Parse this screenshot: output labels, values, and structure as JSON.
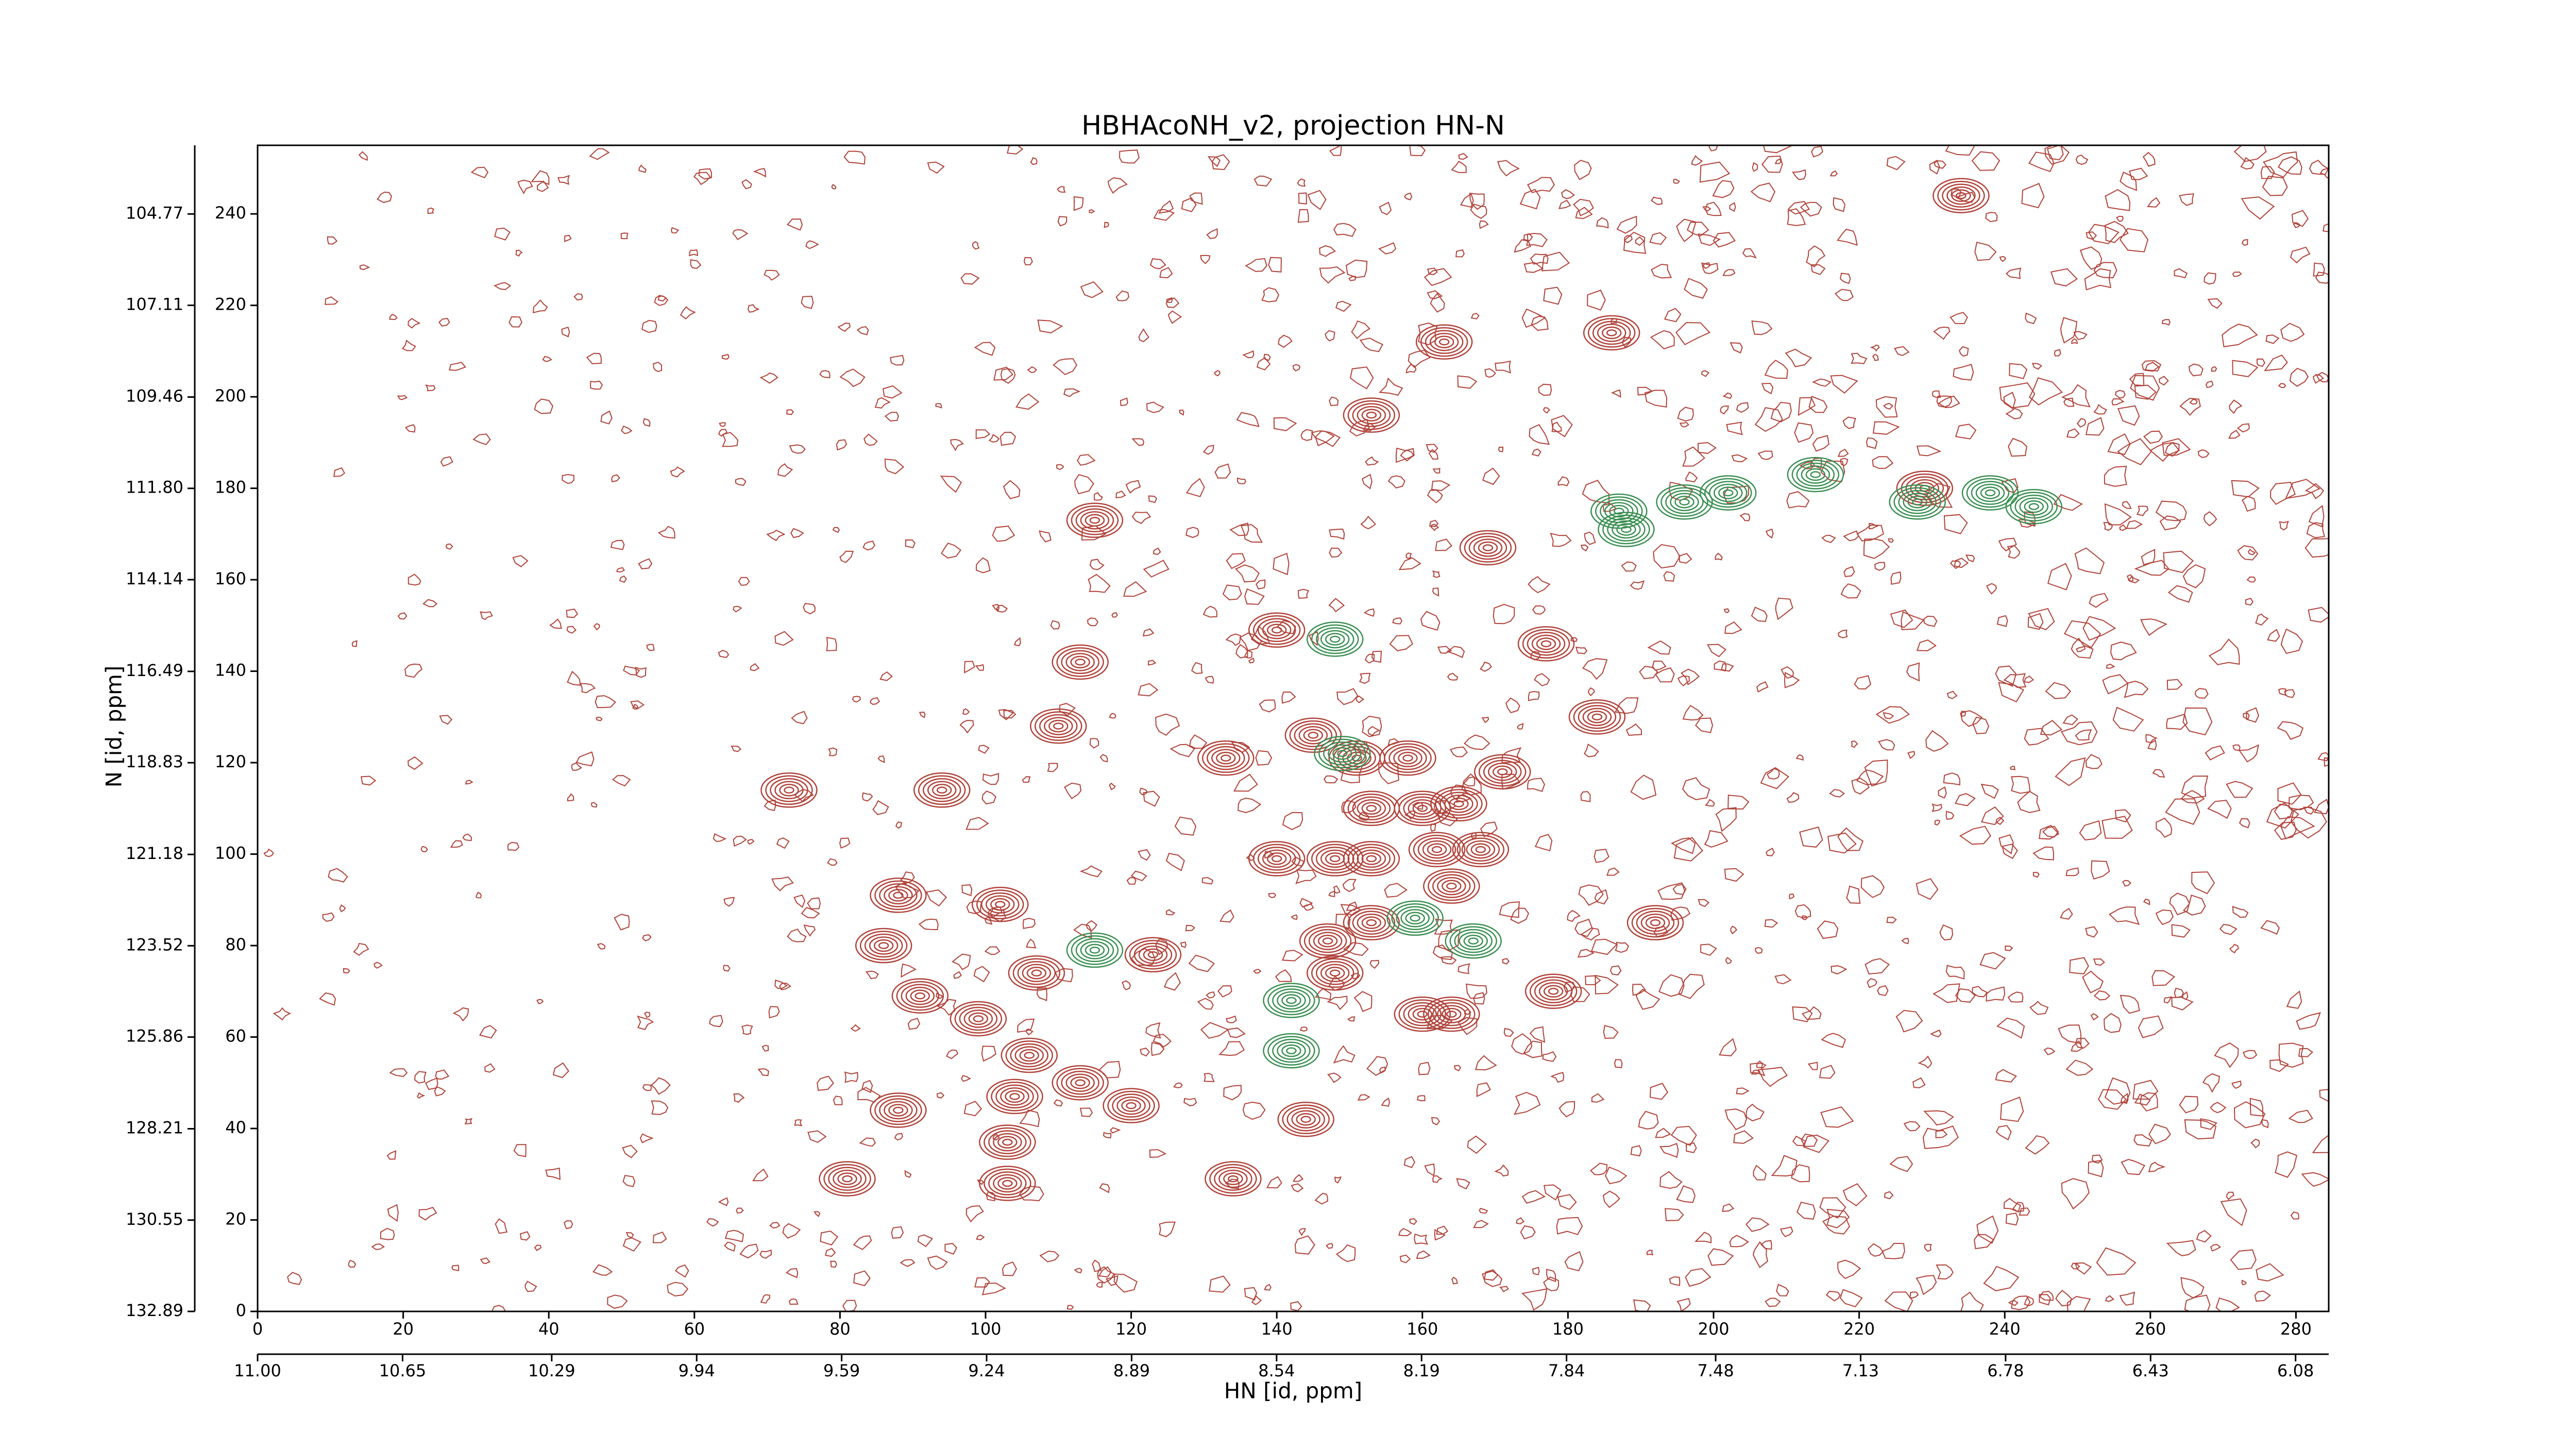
{
  "chart_data": {
    "type": "contour",
    "title": "HBHAcoNH_v2, projection HN-N",
    "x_label": "HN [id, ppm]",
    "y_label": "N [id, ppm]",
    "xlim": [
      0,
      284.5
    ],
    "xticks": [
      0,
      20,
      40,
      60,
      80,
      100,
      120,
      140,
      160,
      180,
      200,
      220,
      240,
      260,
      280
    ],
    "ylim": [
      0,
      255
    ],
    "yticks": [
      0,
      20,
      40,
      60,
      80,
      100,
      120,
      140,
      160,
      180,
      200,
      220,
      240
    ],
    "x2lim": [
      11.0,
      6.0
    ],
    "x2ticks": [
      {
        "value": 11,
        "label": "11.00"
      },
      10.65,
      10.29,
      9.94,
      9.59,
      9.24,
      8.89,
      8.54,
      8.19,
      7.84,
      7.48,
      7.13,
      6.78,
      6.43,
      6.08
    ],
    "y2lim": [
      132.89,
      103.01
    ],
    "y2ticks": [
      132.89,
      130.55,
      128.21,
      125.86,
      123.52,
      121.18,
      118.83,
      116.49,
      114.14,
      {
        "value": 111.8,
        "label": "111.80"
      },
      109.46,
      107.11,
      104.77
    ],
    "series": [
      {
        "color": "#b0433a",
        "x": [
          234,
          163,
          186,
          153,
          115,
          169,
          140,
          177,
          113,
          110,
          184,
          133,
          94,
          73,
          171,
          102,
          88,
          86,
          123,
          107,
          91,
          99,
          106,
          113,
          104,
          120,
          88,
          144,
          103,
          81,
          134,
          103,
          178,
          192,
          229,
          145,
          151,
          158,
          153,
          160,
          148,
          153,
          162,
          168,
          164,
          147,
          153,
          148,
          160,
          164,
          140,
          165
        ],
        "y": [
          244,
          212,
          214,
          196,
          173,
          167,
          149,
          146,
          142,
          128,
          130,
          121,
          114,
          114,
          118,
          89,
          91,
          80,
          78,
          74,
          69,
          64,
          56,
          50,
          47,
          45,
          44,
          42,
          37,
          29,
          29,
          28,
          70,
          85,
          180,
          126,
          121,
          121,
          110,
          110,
          99,
          99,
          101,
          101,
          93,
          81,
          85,
          74,
          65,
          65,
          99,
          111
        ]
      },
      {
        "color": "#3a8f52",
        "x": [
          187,
          196,
          202,
          214,
          228,
          238,
          244,
          188,
          148,
          142,
          142,
          115,
          149,
          159,
          167
        ],
        "y": [
          175,
          177,
          179,
          183,
          177,
          179,
          176,
          171,
          147,
          68,
          57,
          79,
          122,
          86,
          81
        ]
      }
    ]
  }
}
